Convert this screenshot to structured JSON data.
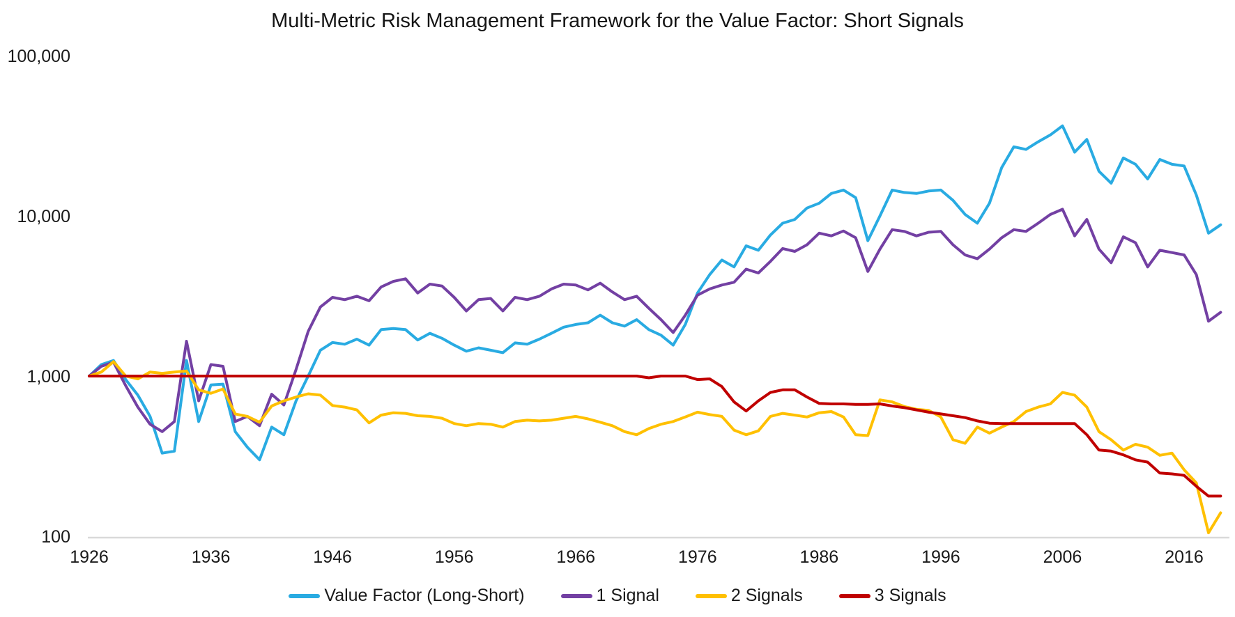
{
  "title": "Multi-Metric Risk Management Framework for the Value Factor: Short Signals",
  "colors": {
    "value_factor": "#29ABE2",
    "one_signal": "#7340A3",
    "two_signals": "#FFC000",
    "three_signals": "#C00000",
    "axis_line": "#D9D9D9",
    "text": "#1a1a1a"
  },
  "chart_data": {
    "type": "line",
    "title": "Multi-Metric Risk Management Framework for the Value Factor: Short Signals",
    "y_scale": "log",
    "grid": false,
    "legend_position": "bottom",
    "x_axis": {
      "ticks": [
        1926,
        1936,
        1946,
        1956,
        1966,
        1976,
        1986,
        1996,
        2006,
        2016
      ],
      "range": [
        1926,
        2019
      ]
    },
    "y_axis": {
      "ticks": [
        100,
        1000,
        10000,
        100000
      ],
      "tick_labels": [
        "100",
        "1,000",
        "10,000",
        "100,000"
      ],
      "range": [
        100,
        100000
      ]
    },
    "x": [
      1926,
      1927,
      1928,
      1929,
      1930,
      1931,
      1932,
      1933,
      1934,
      1935,
      1936,
      1937,
      1938,
      1939,
      1940,
      1941,
      1942,
      1943,
      1944,
      1945,
      1946,
      1947,
      1948,
      1949,
      1950,
      1951,
      1952,
      1953,
      1954,
      1955,
      1956,
      1957,
      1958,
      1959,
      1960,
      1961,
      1962,
      1963,
      1964,
      1965,
      1966,
      1967,
      1968,
      1969,
      1970,
      1971,
      1972,
      1973,
      1974,
      1975,
      1976,
      1977,
      1978,
      1979,
      1980,
      1981,
      1982,
      1983,
      1984,
      1985,
      1986,
      1987,
      1988,
      1989,
      1990,
      1991,
      1992,
      1993,
      1994,
      1995,
      1996,
      1997,
      1998,
      1999,
      2000,
      2001,
      2002,
      2003,
      2004,
      2005,
      2006,
      2007,
      2008,
      2009,
      2010,
      2011,
      2012,
      2013,
      2014,
      2015,
      2016,
      2017,
      2018,
      2019
    ],
    "series": [
      {
        "name": "Value Factor (Long-Short)",
        "color": "#29ABE2",
        "values": [
          1000,
          1180,
          1250,
          950,
          760,
          560,
          330,
          340,
          1250,
          520,
          880,
          890,
          450,
          360,
          300,
          480,
          430,
          700,
          1000,
          1450,
          1620,
          1580,
          1700,
          1560,
          1950,
          1980,
          1950,
          1680,
          1850,
          1720,
          1560,
          1430,
          1500,
          1450,
          1400,
          1610,
          1580,
          1700,
          1850,
          2020,
          2100,
          2150,
          2400,
          2150,
          2050,
          2250,
          1950,
          1800,
          1560,
          2100,
          3300,
          4300,
          5300,
          4800,
          6500,
          6100,
          7600,
          9000,
          9500,
          11200,
          12000,
          13800,
          14500,
          13000,
          7000,
          10000,
          14500,
          14000,
          13800,
          14300,
          14500,
          12500,
          10200,
          9000,
          12000,
          20000,
          27000,
          26000,
          29000,
          32000,
          36500,
          25000,
          30000,
          19000,
          16000,
          23000,
          21000,
          17000,
          22500,
          21000,
          20500,
          13500,
          7800,
          8800
        ]
      },
      {
        "name": "1 Signal",
        "color": "#7340A3",
        "values": [
          1000,
          1150,
          1220,
          870,
          640,
          500,
          450,
          520,
          1650,
          700,
          1180,
          1150,
          520,
          560,
          490,
          770,
          660,
          1100,
          1900,
          2700,
          3100,
          3000,
          3150,
          2950,
          3600,
          3900,
          4050,
          3300,
          3750,
          3650,
          3100,
          2550,
          3000,
          3050,
          2550,
          3100,
          3000,
          3150,
          3500,
          3750,
          3700,
          3450,
          3800,
          3350,
          3000,
          3150,
          2650,
          2250,
          1870,
          2400,
          3200,
          3500,
          3700,
          3850,
          4650,
          4400,
          5200,
          6250,
          6000,
          6600,
          7800,
          7500,
          8050,
          7300,
          4500,
          6200,
          8200,
          8000,
          7500,
          7900,
          8000,
          6600,
          5700,
          5400,
          6200,
          7300,
          8200,
          8000,
          9000,
          10200,
          11000,
          7500,
          9500,
          6200,
          5100,
          7400,
          6800,
          4800,
          6100,
          5900,
          5700,
          4300,
          2200,
          2500
        ]
      },
      {
        "name": "2 Signals",
        "color": "#FFC000",
        "values": [
          1000,
          1060,
          1230,
          1000,
          960,
          1060,
          1040,
          1060,
          1075,
          820,
          780,
          830,
          580,
          560,
          515,
          650,
          700,
          740,
          775,
          760,
          655,
          640,
          615,
          510,
          570,
          590,
          585,
          565,
          560,
          545,
          505,
          490,
          505,
          500,
          480,
          520,
          530,
          525,
          530,
          545,
          560,
          540,
          515,
          490,
          450,
          430,
          470,
          500,
          520,
          555,
          595,
          575,
          560,
          460,
          430,
          455,
          560,
          585,
          570,
          555,
          590,
          600,
          555,
          430,
          425,
          710,
          690,
          645,
          620,
          610,
          555,
          400,
          380,
          480,
          440,
          480,
          520,
          600,
          640,
          670,
          790,
          760,
          640,
          450,
          400,
          345,
          375,
          360,
          320,
          330,
          260,
          215,
          105,
          140
        ]
      },
      {
        "name": "3 Signals",
        "color": "#C00000",
        "values": [
          1000,
          1000,
          1000,
          1000,
          1000,
          1000,
          1000,
          1000,
          1000,
          1000,
          1000,
          1000,
          1000,
          1000,
          1000,
          1000,
          1000,
          1000,
          1000,
          1000,
          1000,
          1000,
          1000,
          1000,
          1000,
          1000,
          1000,
          1000,
          1000,
          1000,
          1000,
          1000,
          1000,
          1000,
          1000,
          1000,
          1000,
          1000,
          1000,
          1000,
          1000,
          1000,
          1000,
          1000,
          1000,
          1000,
          975,
          1000,
          1000,
          1000,
          950,
          960,
          860,
          690,
          605,
          700,
          790,
          820,
          820,
          740,
          675,
          670,
          670,
          665,
          665,
          670,
          650,
          635,
          615,
          595,
          580,
          565,
          550,
          525,
          508,
          505,
          505,
          505,
          505,
          505,
          505,
          505,
          430,
          345,
          340,
          322,
          300,
          290,
          248,
          245,
          240,
          205,
          178,
          178
        ]
      }
    ]
  }
}
